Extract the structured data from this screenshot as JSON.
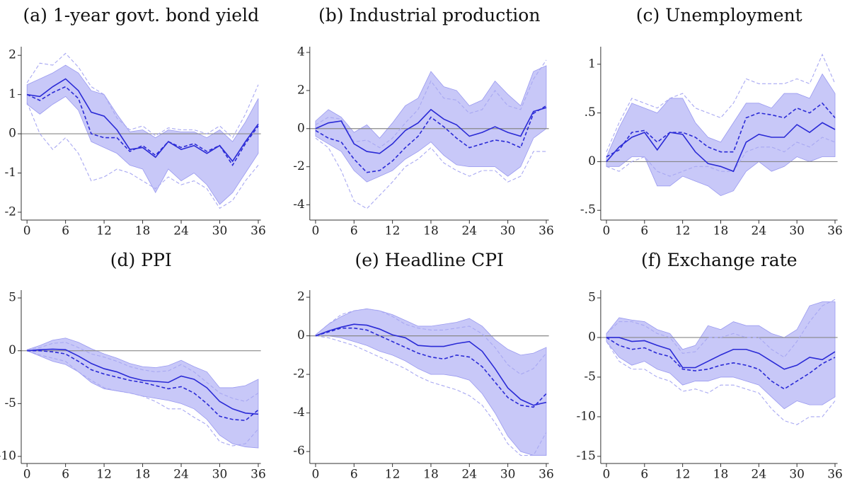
{
  "chart_data": [
    {
      "type": "line",
      "title": "(a) 1-year govt. bond yield",
      "x": [
        0,
        2,
        4,
        6,
        8,
        10,
        12,
        14,
        16,
        18,
        20,
        22,
        24,
        26,
        28,
        30,
        32,
        34,
        36
      ],
      "xlim": [
        -0.9,
        36.4
      ],
      "xticks": [
        0,
        6,
        12,
        18,
        24,
        30,
        36
      ],
      "ylim": [
        -2.2,
        2.22
      ],
      "yticks": [
        -2,
        -1,
        0,
        1,
        2
      ],
      "reference_line": 0,
      "band": {
        "color": "#c8c8f8",
        "edge": "#9a9af0",
        "lower": [
          0.75,
          0.5,
          0.75,
          0.95,
          0.6,
          -0.2,
          -0.35,
          -0.5,
          -0.8,
          -0.9,
          -1.5,
          -0.9,
          -1.2,
          -1.0,
          -1.3,
          -1.8,
          -1.5,
          -1.0,
          -0.5
        ],
        "upper": [
          1.25,
          1.4,
          1.55,
          1.75,
          1.55,
          1.1,
          1.0,
          0.5,
          0.05,
          0.1,
          -0.1,
          0.1,
          0.05,
          0.05,
          -0.1,
          0.1,
          -0.2,
          0.3,
          0.9
        ]
      },
      "series": [
        {
          "color": "#2a2ad6",
          "dashed": false,
          "values": [
            1.0,
            0.95,
            1.2,
            1.4,
            1.1,
            0.55,
            0.45,
            0.1,
            -0.4,
            -0.35,
            -0.6,
            -0.2,
            -0.4,
            -0.3,
            -0.5,
            -0.3,
            -0.7,
            -0.2,
            0.25
          ]
        },
        {
          "color": "#2a2ad6",
          "dashed": true,
          "values": [
            1.0,
            0.85,
            1.05,
            1.2,
            0.9,
            0.0,
            -0.1,
            -0.1,
            -0.45,
            -0.3,
            -0.55,
            -0.2,
            -0.35,
            -0.25,
            -0.45,
            -0.3,
            -0.8,
            -0.25,
            0.2
          ]
        },
        {
          "color": "#a8a8f2",
          "dashed": true,
          "values": [
            0.8,
            0.0,
            -0.4,
            -0.1,
            -0.5,
            -1.2,
            -1.1,
            -0.9,
            -1.0,
            -1.2,
            -1.4,
            -1.1,
            -1.3,
            -1.2,
            -1.4,
            -1.9,
            -1.7,
            -1.2,
            -0.8
          ]
        },
        {
          "color": "#a8a8f2",
          "dashed": true,
          "values": [
            1.3,
            1.8,
            1.75,
            2.05,
            1.7,
            1.2,
            1.0,
            0.4,
            0.1,
            0.2,
            -0.05,
            0.15,
            0.1,
            0.1,
            0.0,
            0.2,
            -0.1,
            0.5,
            1.25
          ]
        }
      ]
    },
    {
      "type": "line",
      "title": "(b) Industrial production",
      "x": [
        0,
        2,
        4,
        6,
        8,
        10,
        12,
        14,
        16,
        18,
        20,
        22,
        24,
        26,
        28,
        30,
        32,
        34,
        36
      ],
      "xlim": [
        -0.9,
        36.4
      ],
      "xticks": [
        0,
        6,
        12,
        18,
        24,
        30,
        36
      ],
      "ylim": [
        -4.8,
        4.3
      ],
      "yticks": [
        -4,
        -2,
        0,
        2,
        4
      ],
      "reference_line": 0,
      "band": {
        "color": "#c8c8f8",
        "edge": "#9a9af0",
        "lower": [
          -0.4,
          -0.8,
          -1.2,
          -2.2,
          -2.8,
          -2.5,
          -2.2,
          -1.6,
          -1.2,
          -0.7,
          -1.4,
          -1.9,
          -2.0,
          -2.0,
          -2.0,
          -2.5,
          -2.0,
          -0.5,
          0.0
        ],
        "upper": [
          0.4,
          1.0,
          0.6,
          -0.2,
          0.2,
          -0.5,
          0.3,
          1.2,
          1.6,
          3.0,
          2.2,
          2.0,
          1.2,
          1.5,
          2.5,
          1.8,
          1.2,
          3.0,
          3.3
        ]
      },
      "series": [
        {
          "color": "#2a2ad6",
          "dashed": false,
          "values": [
            0,
            0.3,
            0.4,
            -0.8,
            -1.2,
            -1.3,
            -0.8,
            -0.1,
            0.3,
            1.0,
            0.5,
            0.2,
            -0.4,
            -0.2,
            0.1,
            -0.2,
            -0.4,
            0.9,
            1.1
          ]
        },
        {
          "color": "#2a2ad6",
          "dashed": true,
          "values": [
            -0.1,
            -0.5,
            -0.7,
            -1.6,
            -2.3,
            -2.2,
            -1.7,
            -1.0,
            -0.4,
            0.6,
            0.1,
            -0.5,
            -1.0,
            -0.8,
            -0.6,
            -0.7,
            -1.0,
            0.8,
            1.2
          ]
        },
        {
          "color": "#a8a8f2",
          "dashed": true,
          "values": [
            -0.5,
            -1.0,
            -2.2,
            -3.8,
            -4.2,
            -3.5,
            -2.8,
            -2.0,
            -1.6,
            -1.0,
            -1.8,
            -2.2,
            -2.5,
            -2.2,
            -2.2,
            -2.8,
            -2.5,
            -1.2,
            -1.2
          ]
        },
        {
          "color": "#a8a8f2",
          "dashed": true,
          "values": [
            0.2,
            0.6,
            0.5,
            -0.7,
            -0.6,
            -1.0,
            -0.5,
            0.3,
            1.0,
            2.5,
            1.6,
            1.5,
            0.8,
            1.0,
            2.0,
            1.2,
            1.0,
            2.6,
            3.6
          ]
        }
      ]
    },
    {
      "type": "line",
      "title": "(c) Unemployment",
      "x": [
        0,
        2,
        4,
        6,
        8,
        10,
        12,
        14,
        16,
        18,
        20,
        22,
        24,
        26,
        28,
        30,
        32,
        34,
        36
      ],
      "xlim": [
        -0.9,
        36.4
      ],
      "xticks": [
        0,
        6,
        12,
        18,
        24,
        30,
        36
      ],
      "ylim": [
        -0.6,
        1.18
      ],
      "yticks": [
        {
          "value": -0.5,
          "label": "-.5"
        },
        0,
        {
          "value": 0.5,
          "label": ".5"
        },
        1
      ],
      "reference_line": 0,
      "band": {
        "color": "#c8c8f8",
        "edge": "#9a9af0",
        "lower": [
          -0.05,
          -0.05,
          0.05,
          0.05,
          -0.25,
          -0.25,
          -0.15,
          -0.2,
          -0.25,
          -0.35,
          -0.3,
          -0.1,
          0.0,
          -0.1,
          -0.05,
          0.05,
          0.0,
          0.05,
          0.05
        ],
        "upper": [
          0.05,
          0.35,
          0.6,
          0.55,
          0.5,
          0.65,
          0.65,
          0.4,
          0.25,
          0.2,
          0.4,
          0.6,
          0.6,
          0.55,
          0.7,
          0.7,
          0.65,
          0.9,
          0.7
        ]
      },
      "series": [
        {
          "color": "#2a2ad6",
          "dashed": false,
          "values": [
            0,
            0.15,
            0.25,
            0.3,
            0.12,
            0.3,
            0.28,
            0.1,
            -0.02,
            -0.05,
            -0.1,
            0.2,
            0.28,
            0.25,
            0.25,
            0.38,
            0.3,
            0.4,
            0.33
          ]
        },
        {
          "color": "#2a2ad6",
          "dashed": true,
          "values": [
            0.05,
            0.12,
            0.3,
            0.32,
            0.2,
            0.3,
            0.3,
            0.25,
            0.15,
            0.1,
            0.1,
            0.45,
            0.5,
            0.48,
            0.45,
            0.55,
            0.5,
            0.6,
            0.45
          ]
        },
        {
          "color": "#a8a8f2",
          "dashed": true,
          "values": [
            -0.05,
            -0.1,
            0.0,
            0.05,
            -0.1,
            -0.15,
            -0.1,
            -0.05,
            -0.05,
            -0.1,
            -0.1,
            0.1,
            0.15,
            0.15,
            0.1,
            0.2,
            0.15,
            0.25,
            0.2
          ]
        },
        {
          "color": "#a8a8f2",
          "dashed": true,
          "values": [
            0.1,
            0.4,
            0.65,
            0.6,
            0.55,
            0.65,
            0.7,
            0.55,
            0.5,
            0.45,
            0.6,
            0.85,
            0.8,
            0.8,
            0.8,
            0.85,
            0.8,
            1.1,
            0.8
          ]
        }
      ]
    },
    {
      "type": "line",
      "title": "(d) PPI",
      "x": [
        0,
        2,
        4,
        6,
        8,
        10,
        12,
        14,
        16,
        18,
        20,
        22,
        24,
        26,
        28,
        30,
        32,
        34,
        36
      ],
      "xlim": [
        -0.9,
        36.4
      ],
      "xticks": [
        0,
        6,
        12,
        18,
        24,
        30,
        36
      ],
      "ylim": [
        -10.67,
        5.74
      ],
      "yticks": [
        -10,
        -5,
        0,
        5
      ],
      "reference_line": 0,
      "band": {
        "color": "#c8c8f8",
        "edge": "#9a9af0",
        "lower": [
          0,
          -0.5,
          -1.0,
          -1.3,
          -2.0,
          -3.0,
          -3.6,
          -3.8,
          -4.0,
          -4.3,
          -4.5,
          -4.7,
          -5.0,
          -5.5,
          -6.5,
          -8.0,
          -8.8,
          -9.1,
          -9.2
        ],
        "upper": [
          0.1,
          0.5,
          1.0,
          1.2,
          0.8,
          0.2,
          -0.3,
          -0.7,
          -1.2,
          -1.5,
          -1.6,
          -1.4,
          -0.9,
          -1.5,
          -2.0,
          -3.5,
          -3.5,
          -3.3,
          -2.7
        ]
      },
      "series": [
        {
          "color": "#2a2ad6",
          "dashed": false,
          "values": [
            0,
            0.1,
            0.15,
            0.1,
            -0.5,
            -1.2,
            -1.7,
            -2.0,
            -2.5,
            -2.8,
            -2.9,
            -3.0,
            -2.4,
            -2.7,
            -3.5,
            -4.8,
            -5.5,
            -5.9,
            -6.0
          ]
        },
        {
          "color": "#2a2ad6",
          "dashed": true,
          "values": [
            0,
            0,
            -0.1,
            -0.3,
            -1.0,
            -1.8,
            -2.2,
            -2.5,
            -2.8,
            -3.0,
            -3.3,
            -3.6,
            -3.4,
            -4.0,
            -5.0,
            -6.2,
            -6.5,
            -6.6,
            -5.6
          ]
        },
        {
          "color": "#a8a8f2",
          "dashed": true,
          "values": [
            0,
            -0.4,
            -0.7,
            -1.0,
            -2.0,
            -2.8,
            -3.5,
            -3.8,
            -4.0,
            -4.3,
            -4.8,
            -5.5,
            -5.5,
            -6.3,
            -7.0,
            -8.6,
            -9.0,
            -8.8,
            -7.4
          ]
        },
        {
          "color": "#a8a8f2",
          "dashed": true,
          "values": [
            0.1,
            0.3,
            0.7,
            0.8,
            0.3,
            -0.3,
            -0.6,
            -1.0,
            -1.5,
            -1.8,
            -2.0,
            -1.9,
            -1.3,
            -2.0,
            -3.0,
            -4.0,
            -4.5,
            -4.8,
            -4.0
          ]
        }
      ]
    },
    {
      "type": "line",
      "title": "(e) Headline CPI",
      "x": [
        0,
        2,
        4,
        6,
        8,
        10,
        12,
        14,
        16,
        18,
        20,
        22,
        24,
        26,
        28,
        30,
        32,
        34,
        36
      ],
      "xlim": [
        -0.9,
        36.4
      ],
      "xticks": [
        0,
        6,
        12,
        18,
        24,
        30,
        36
      ],
      "ylim": [
        -6.62,
        2.37
      ],
      "yticks": [
        -6,
        -4,
        -2,
        0,
        2
      ],
      "reference_line": 0,
      "band": {
        "color": "#c8c8f8",
        "edge": "#9a9af0",
        "lower": [
          0,
          0.0,
          -0.1,
          -0.3,
          -0.5,
          -0.8,
          -1.0,
          -1.3,
          -1.7,
          -2.0,
          -2.0,
          -2.1,
          -2.3,
          -3.0,
          -4.0,
          -5.2,
          -6.0,
          -6.2,
          -6.2
        ],
        "upper": [
          0.05,
          0.6,
          1.0,
          1.3,
          1.4,
          1.3,
          1.1,
          0.8,
          0.5,
          0.5,
          0.6,
          0.7,
          0.9,
          0.5,
          -0.2,
          -0.7,
          -1.0,
          -0.9,
          -0.6
        ]
      },
      "series": [
        {
          "color": "#2a2ad6",
          "dashed": false,
          "values": [
            0,
            0.25,
            0.45,
            0.6,
            0.55,
            0.35,
            0.05,
            -0.1,
            -0.5,
            -0.55,
            -0.55,
            -0.4,
            -0.3,
            -0.8,
            -1.7,
            -2.7,
            -3.3,
            -3.6,
            -3.45
          ]
        },
        {
          "color": "#2a2ad6",
          "dashed": true,
          "values": [
            0,
            0.2,
            0.4,
            0.4,
            0.3,
            0.0,
            -0.3,
            -0.6,
            -0.9,
            -1.1,
            -1.2,
            -1.0,
            -1.1,
            -1.6,
            -2.4,
            -3.2,
            -3.6,
            -3.7,
            -3.0
          ]
        },
        {
          "color": "#a8a8f2",
          "dashed": true,
          "values": [
            0,
            -0.1,
            -0.3,
            -0.5,
            -0.8,
            -1.1,
            -1.4,
            -1.7,
            -2.1,
            -2.4,
            -2.6,
            -2.8,
            -3.1,
            -3.6,
            -4.5,
            -5.6,
            -6.2,
            -6.2,
            -5.0
          ]
        },
        {
          "color": "#a8a8f2",
          "dashed": true,
          "values": [
            0.05,
            0.6,
            1.1,
            1.3,
            1.4,
            1.3,
            1.0,
            0.6,
            0.4,
            0.3,
            0.3,
            0.4,
            0.5,
            0.1,
            -0.6,
            -1.5,
            -2.0,
            -1.7,
            -0.9
          ]
        }
      ]
    },
    {
      "type": "line",
      "title": "(f) Exchange rate",
      "x": [
        0,
        2,
        4,
        6,
        8,
        10,
        12,
        14,
        16,
        18,
        20,
        22,
        24,
        26,
        28,
        30,
        32,
        34,
        36
      ],
      "xlim": [
        -0.9,
        36.4
      ],
      "xticks": [
        0,
        6,
        12,
        18,
        24,
        30,
        36
      ],
      "ylim": [
        -15.9,
        5.98
      ],
      "yticks": [
        -15,
        -10,
        -5,
        0,
        5
      ],
      "reference_line": 0,
      "band": {
        "color": "#c8c8f8",
        "edge": "#9a9af0",
        "lower": [
          -0.5,
          -2.5,
          -3.5,
          -3.0,
          -4.0,
          -4.5,
          -6.0,
          -5.5,
          -5.5,
          -5.0,
          -5.0,
          -5.5,
          -6.0,
          -7.5,
          -9.0,
          -8.0,
          -8.5,
          -8.5,
          -7.5
        ],
        "upper": [
          0.5,
          2.5,
          2.2,
          2.0,
          1.0,
          0.5,
          -1.5,
          -1.0,
          1.5,
          1.0,
          2.0,
          1.5,
          1.5,
          0.5,
          0.0,
          1.0,
          4.0,
          4.5,
          4.5
        ]
      },
      "series": [
        {
          "color": "#2a2ad6",
          "dashed": false,
          "values": [
            0,
            0,
            -0.5,
            -0.4,
            -1.0,
            -1.5,
            -3.8,
            -3.8,
            -3.0,
            -2.2,
            -1.5,
            -1.5,
            -2.0,
            -3.0,
            -4.0,
            -3.5,
            -2.5,
            -2.8,
            -1.8
          ]
        },
        {
          "color": "#2a2ad6",
          "dashed": true,
          "values": [
            0,
            -1.0,
            -1.5,
            -1.3,
            -2.0,
            -2.4,
            -4.0,
            -4.2,
            -4.0,
            -3.5,
            -3.2,
            -3.5,
            -4.0,
            -5.5,
            -6.5,
            -5.5,
            -4.5,
            -3.3,
            -2.5
          ]
        },
        {
          "color": "#a8a8f2",
          "dashed": true,
          "values": [
            -0.5,
            -3.0,
            -4.0,
            -4.0,
            -5.0,
            -5.5,
            -6.8,
            -6.5,
            -7.0,
            -6.0,
            -6.0,
            -6.5,
            -7.0,
            -9.0,
            -10.5,
            -11.0,
            -10.0,
            -10.0,
            -8.0
          ]
        },
        {
          "color": "#a8a8f2",
          "dashed": true,
          "values": [
            0.5,
            2.0,
            2.0,
            1.5,
            0.5,
            0.0,
            -2.0,
            -1.8,
            0.0,
            0.0,
            0.5,
            0.0,
            0.0,
            -1.5,
            -2.5,
            -0.5,
            2.0,
            4.0,
            4.8
          ]
        }
      ]
    }
  ]
}
